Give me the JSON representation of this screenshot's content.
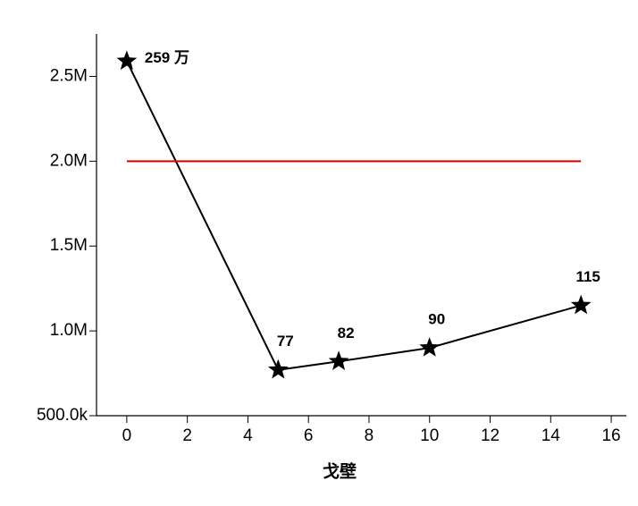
{
  "chart_data": {
    "type": "line",
    "xlabel": "戈壁",
    "xlim": [
      -1,
      16.5
    ],
    "xticks": [
      0,
      2,
      4,
      6,
      8,
      10,
      12,
      14,
      16
    ],
    "ylim": [
      500000,
      2750000
    ],
    "yticks": [
      {
        "value": 500000,
        "label": "500.0k"
      },
      {
        "value": 1000000,
        "label": "1.0M"
      },
      {
        "value": 1500000,
        "label": "1.5M"
      },
      {
        "value": 2000000,
        "label": "2.0M"
      },
      {
        "value": 2500000,
        "label": "2.5M"
      }
    ],
    "series": [
      {
        "color": "#000000",
        "marker": "star",
        "x": [
          0,
          5,
          7,
          10,
          15
        ],
        "values": [
          2590000,
          770000,
          820000,
          900000,
          1150000
        ],
        "value_labels": [
          "259 万",
          "77",
          "82",
          "90",
          "115"
        ]
      },
      {
        "color": "#e00000",
        "x": [
          0,
          15
        ],
        "values": [
          2000000,
          2000000
        ]
      }
    ]
  }
}
